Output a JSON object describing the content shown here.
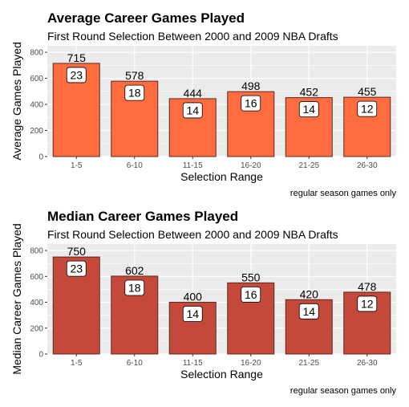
{
  "chart_data": [
    {
      "type": "bar",
      "title": "Average Career Games Played",
      "subtitle": "First Round Selection Between 2000 and 2009 NBA Drafts",
      "xlabel": "Selection Range",
      "ylabel": "Average Games Played",
      "caption": "regular season games only",
      "categories": [
        "1-5",
        "6-10",
        "11-15",
        "16-20",
        "21-25",
        "26-30"
      ],
      "values": [
        715,
        578,
        444,
        498,
        452,
        455
      ],
      "counts": [
        23,
        18,
        14,
        16,
        14,
        12
      ],
      "ylim": [
        0,
        850
      ],
      "yticks": [
        0,
        200,
        400,
        600,
        800
      ],
      "bar_color": "#FF6C40",
      "grid": true
    },
    {
      "type": "bar",
      "title": "Median Career Games Played",
      "subtitle": "First Round Selection Between 2000 and 2009 NBA Drafts",
      "xlabel": "Selection Range",
      "ylabel": "Median Career Games Played",
      "caption": "regular season games only",
      "categories": [
        "1-5",
        "6-10",
        "11-15",
        "16-20",
        "21-25",
        "26-30"
      ],
      "values": [
        750,
        602,
        400,
        550,
        420,
        478
      ],
      "counts": [
        23,
        18,
        14,
        16,
        14,
        12
      ],
      "ylim": [
        0,
        850
      ],
      "yticks": [
        0,
        200,
        400,
        600,
        800
      ],
      "bar_color": "#C4493A",
      "grid": true
    }
  ]
}
